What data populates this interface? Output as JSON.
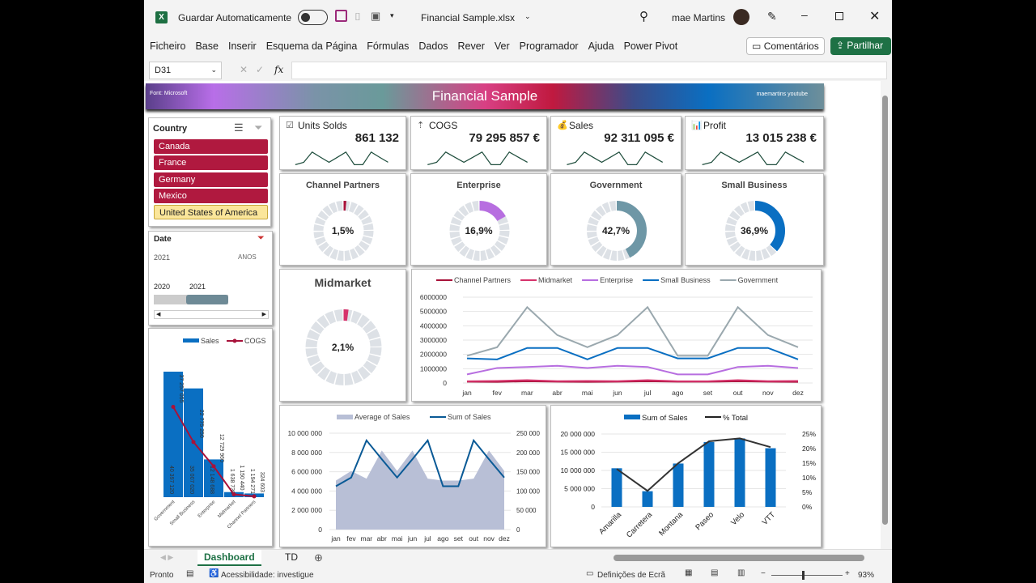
{
  "titlebar": {
    "autosave_label": "Guardar Automaticamente",
    "filename": "Financial Sample.xlsx",
    "user": "mae Martins"
  },
  "menu": [
    "Ficheiro",
    "Base",
    "Inserir",
    "Esquema da Página",
    "Fórmulas",
    "Dados",
    "Rever",
    "Ver",
    "Programador",
    "Ajuda",
    "Power Pivot"
  ],
  "comments_label": "Comentários",
  "share_label": "Partilhar",
  "formula": {
    "cell_ref": "D31",
    "fx": "fx",
    "value": ""
  },
  "header": {
    "left": "Font: Microsoft",
    "title": "Financial Sample",
    "right": "maemartins youtube"
  },
  "colors": {
    "channel_partners": "#a8123a",
    "midmarket": "#d6336c",
    "enterprise": "#b76ee0",
    "small_business": "#0a6fc2",
    "government": "#9aa8ae",
    "sales": "#0a6fc2",
    "cogs": "#a8123a"
  },
  "slicer": {
    "title": "Country",
    "items": [
      {
        "label": "Canada",
        "selected": true
      },
      {
        "label": "France",
        "selected": true
      },
      {
        "label": "Germany",
        "selected": true
      },
      {
        "label": "Mexico",
        "selected": true
      },
      {
        "label": "United States of America",
        "selected": false
      }
    ]
  },
  "timeline": {
    "title": "Date",
    "range": "2021",
    "level": "ANOS",
    "years": [
      "2020",
      "2021"
    ]
  },
  "kpis": [
    {
      "icon": "checkbox-icon",
      "label": "Units Solds",
      "value": "861 132"
    },
    {
      "icon": "cost-icon",
      "label": "COGS",
      "value": "79 295 857 €"
    },
    {
      "icon": "money-bag-icon",
      "label": "Sales",
      "value": "92 311 095 €"
    },
    {
      "icon": "profit-chart-icon",
      "label": "Profit",
      "value": "13 015 238 €"
    }
  ],
  "donuts": [
    {
      "label": "Channel Partners",
      "value": "1,5%",
      "pct": 1.5,
      "color": "#a8123a"
    },
    {
      "label": "Enterprise",
      "value": "16,9%",
      "pct": 16.9,
      "color": "#b76ee0"
    },
    {
      "label": "Government",
      "value": "42,7%",
      "pct": 42.7,
      "color": "#6e97a6"
    },
    {
      "label": "Small Business",
      "value": "36,9%",
      "pct": 36.9,
      "color": "#0a6fc2"
    },
    {
      "label": "Midmarket",
      "value": "2,1%",
      "pct": 2.1,
      "color": "#d6336c"
    }
  ],
  "chart_data": [
    {
      "type": "bar",
      "title": "",
      "legend": [
        "Sales",
        "COGS"
      ],
      "categories": [
        "Government",
        "Small Business",
        "Enterprise",
        "Midmarket",
        "Channel Partners"
      ],
      "series": [
        {
          "name": "Sales",
          "values": [
            40397120,
            35007020,
            12148688,
            1638730,
            1194271
          ],
          "labels": [
            "40 397 120",
            "35 007 020",
            "12 148 688",
            "1 638 730",
            "1 194 271"
          ]
        },
        {
          "name": "COGS",
          "values": [
            37257055,
            22775250,
            12729960,
            1150440,
            324603
          ],
          "labels": [
            "37 257 055",
            "22 775 250",
            "12 729 960",
            "1 150 440",
            "324 603"
          ]
        }
      ]
    },
    {
      "type": "line",
      "legend": [
        "Channel Partners",
        "Midmarket",
        "Enterprise",
        "Small Business",
        "Government"
      ],
      "categories": [
        "jan",
        "fev",
        "mar",
        "abr",
        "mai",
        "jun",
        "jul",
        "ago",
        "set",
        "out",
        "nov",
        "dez"
      ],
      "yticks": [
        "0",
        "1000000",
        "2000000",
        "3000000",
        "4000000",
        "5000000",
        "6000000"
      ],
      "ylim": [
        0,
        6000000
      ],
      "series": [
        {
          "name": "Channel Partners",
          "values": [
            90000,
            80000,
            120000,
            90000,
            80000,
            90000,
            120000,
            90000,
            90000,
            120000,
            90000,
            80000
          ]
        },
        {
          "name": "Midmarket",
          "values": [
            120000,
            140000,
            200000,
            130000,
            140000,
            130000,
            200000,
            120000,
            120000,
            200000,
            130000,
            140000
          ]
        },
        {
          "name": "Enterprise",
          "values": [
            600000,
            1050000,
            1120000,
            1200000,
            1050000,
            1200000,
            1120000,
            600000,
            600000,
            1120000,
            1200000,
            1050000
          ]
        },
        {
          "name": "Small Business",
          "values": [
            1720000,
            1650000,
            2450000,
            2450000,
            1650000,
            2450000,
            2450000,
            1720000,
            1720000,
            2450000,
            2450000,
            1650000
          ]
        },
        {
          "name": "Government",
          "values": [
            1900000,
            2500000,
            5300000,
            3350000,
            2500000,
            3350000,
            5300000,
            1900000,
            1900000,
            5300000,
            3350000,
            2500000
          ]
        }
      ]
    },
    {
      "type": "area",
      "legend": [
        "Average of  Sales",
        "Sum of  Sales"
      ],
      "categories": [
        "jan",
        "fev",
        "mar",
        "abr",
        "mai",
        "jun",
        "jul",
        "ago",
        "set",
        "out",
        "nov",
        "dez"
      ],
      "yticks_left": [
        "0",
        "2 000 000",
        "4 000 000",
        "6 000 000",
        "8 000 000",
        "10 000 000"
      ],
      "ylim_left": [
        0,
        10000000
      ],
      "yticks_right": [
        "0",
        "50 000",
        "100 000",
        "150 000",
        "200 000",
        "250 000"
      ],
      "ylim_right": [
        0,
        250000
      ],
      "series": [
        {
          "name": "Average of  Sales",
          "axis": "right",
          "values": [
            127000,
            152000,
            132000,
            205000,
            152000,
            205000,
            132000,
            127000,
            127000,
            132000,
            205000,
            152000
          ]
        },
        {
          "name": "Sum of  Sales",
          "axis": "left",
          "values": [
            4500000,
            5400000,
            9250000,
            7300000,
            5400000,
            7300000,
            9250000,
            4500000,
            4500000,
            9250000,
            7300000,
            5400000
          ]
        }
      ]
    },
    {
      "type": "bar",
      "legend": [
        "Sum of  Sales",
        "% Total"
      ],
      "categories": [
        "Amarilla",
        "Carretera",
        "Montana",
        "Paseo",
        "Velo",
        "VTT"
      ],
      "yticks_left": [
        "0",
        "5 000 000",
        "10 000 000",
        "15 000 000",
        "20 000 000"
      ],
      "ylim_left": [
        0,
        20000000
      ],
      "yticks_right": [
        "0%",
        "5%",
        "10%",
        "15%",
        "20%",
        "25%"
      ],
      "ylim_right": [
        0,
        25
      ],
      "series": [
        {
          "name": "Sum of  Sales",
          "values": [
            10600000,
            4300000,
            11900000,
            17800000,
            18800000,
            16100000
          ]
        },
        {
          "name": "% Total",
          "values": [
            13,
            5.5,
            15,
            22.5,
            23.5,
            20.5
          ]
        }
      ]
    }
  ],
  "sheet_tabs": [
    {
      "label": "Dashboard",
      "active": true
    },
    {
      "label": "TD",
      "active": false
    }
  ],
  "status": {
    "ready": "Pronto",
    "accessibility": "Acessibilidade: investigue",
    "display_settings": "Definições de Ecrã",
    "zoom": "93%"
  }
}
